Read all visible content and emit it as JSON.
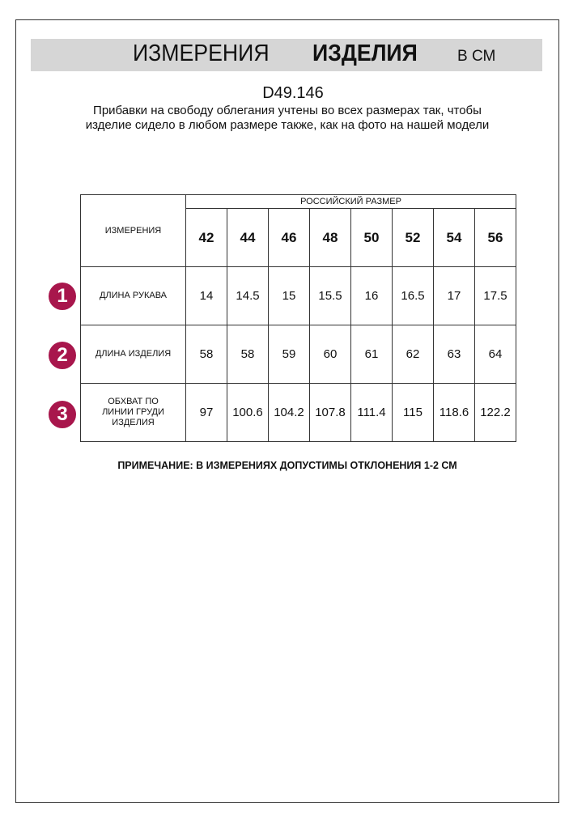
{
  "header": {
    "title_regular": "ИЗМЕРЕНИЯ",
    "title_bold": "ИЗДЕЛИЯ",
    "units": "В СМ"
  },
  "article": "D49.146",
  "description": "Прибавки на свободу облегания учтены во всех размерах так, чтобы изделие сидело в любом размере также, как на фото на нашей модели",
  "table": {
    "corner": "ИЗМЕРЕНИЯ",
    "group_header": "РОССИЙСКИЙ РАЗМЕР",
    "sizes": [
      "42",
      "44",
      "46",
      "48",
      "50",
      "52",
      "54",
      "56"
    ],
    "rows": [
      {
        "num": "1",
        "label": "ДЛИНА РУКАВА",
        "values": [
          "14",
          "14.5",
          "15",
          "15.5",
          "16",
          "16.5",
          "17",
          "17.5"
        ]
      },
      {
        "num": "2",
        "label": "ДЛИНА ИЗДЕЛИЯ",
        "values": [
          "58",
          "58",
          "59",
          "60",
          "61",
          "62",
          "63",
          "64"
        ]
      },
      {
        "num": "3",
        "label": "ОБХВАТ ПО ЛИНИИ ГРУДИ ИЗДЕЛИЯ",
        "values": [
          "97",
          "100.6",
          "104.2",
          "107.8",
          "111.4",
          "115",
          "118.6",
          "122.2"
        ]
      }
    ]
  },
  "note": "ПРИМЕЧАНИЕ: В ИЗМЕРЕНИЯХ ДОПУСТИМЫ ОТКЛОНЕНИЯ 1-2 СМ",
  "colors": {
    "badge": "#a8164c",
    "title_bar": "#d6d6d6"
  }
}
